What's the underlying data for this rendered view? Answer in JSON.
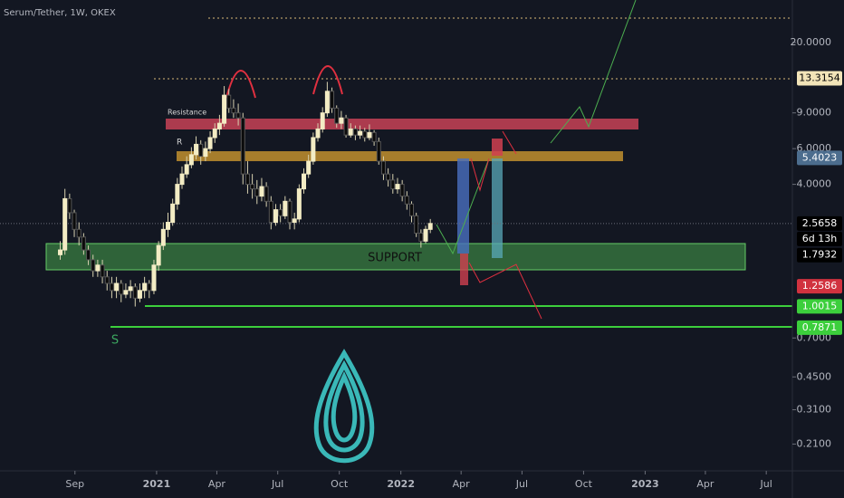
{
  "chart_data": {
    "type": "candlestick",
    "title": "Serum/Tether, 1W, OKEX",
    "x": [
      "2020-08-10",
      "2020-08-17",
      "2020-08-24",
      "2020-08-31",
      "2020-09-07",
      "2020-09-14",
      "2020-09-21",
      "2020-09-28",
      "2020-10-05",
      "2020-10-12",
      "2020-10-19",
      "2020-10-26",
      "2020-11-02",
      "2020-11-09",
      "2020-11-16",
      "2020-11-23",
      "2020-11-30",
      "2020-12-07",
      "2020-12-14",
      "2020-12-21",
      "2020-12-28",
      "2021-01-04",
      "2021-01-11",
      "2021-01-18",
      "2021-01-25",
      "2021-02-01",
      "2021-02-08",
      "2021-02-15",
      "2021-02-22",
      "2021-03-01",
      "2021-03-08",
      "2021-03-15",
      "2021-03-22",
      "2021-03-29",
      "2021-04-05",
      "2021-04-12",
      "2021-04-19",
      "2021-04-26",
      "2021-05-03",
      "2021-05-10",
      "2021-05-17",
      "2021-05-24",
      "2021-05-31",
      "2021-06-07",
      "2021-06-14",
      "2021-06-21",
      "2021-06-28",
      "2021-07-05",
      "2021-07-12",
      "2021-07-19",
      "2021-07-26",
      "2021-08-02",
      "2021-08-09",
      "2021-08-16",
      "2021-08-23",
      "2021-08-30",
      "2021-09-06",
      "2021-09-13",
      "2021-09-20",
      "2021-09-27",
      "2021-10-04",
      "2021-10-11",
      "2021-10-18",
      "2021-10-25",
      "2021-11-01",
      "2021-11-08",
      "2021-11-15",
      "2021-11-22",
      "2021-11-29",
      "2021-12-06",
      "2021-12-13",
      "2021-12-20",
      "2021-12-27",
      "2022-01-03",
      "2022-01-10",
      "2022-01-17",
      "2022-01-24",
      "2022-01-31",
      "2022-02-07",
      "2022-02-14"
    ],
    "open": [
      1.8,
      1.9,
      3.4,
      2.9,
      2.4,
      2.2,
      1.9,
      1.7,
      1.5,
      1.6,
      1.4,
      1.3,
      1.2,
      1.3,
      1.15,
      1.2,
      1.25,
      1.1,
      1.2,
      1.3,
      1.2,
      1.6,
      2.0,
      2.4,
      2.6,
      3.2,
      4.0,
      4.5,
      5.0,
      5.6,
      6.3,
      5.5,
      6.0,
      6.8,
      7.5,
      8.0,
      11.0,
      9.5,
      9.0,
      8.5,
      4.5,
      4.0,
      3.8,
      3.5,
      3.9,
      3.3,
      2.6,
      3.0,
      2.8,
      3.3,
      2.6,
      2.7,
      3.8,
      4.5,
      5.2,
      6.8,
      7.5,
      9.0,
      11.5,
      9.5,
      8.0,
      8.5,
      7.0,
      7.5,
      7.0,
      7.3,
      6.8,
      7.2,
      6.5,
      5.2,
      4.5,
      4.2,
      3.8,
      4.0,
      3.5,
      3.2,
      2.8,
      2.3,
      2.1,
      2.4
    ],
    "high": [
      2.1,
      3.8,
      3.6,
      3.0,
      2.6,
      2.3,
      2.0,
      1.8,
      1.7,
      1.7,
      1.5,
      1.4,
      1.4,
      1.35,
      1.3,
      1.35,
      1.3,
      1.3,
      1.4,
      1.35,
      1.7,
      2.1,
      2.6,
      2.9,
      3.4,
      4.3,
      4.9,
      5.5,
      6.1,
      6.9,
      6.6,
      6.5,
      7.3,
      8.0,
      8.8,
      12.2,
      11.8,
      10.5,
      10.0,
      9.0,
      5.2,
      4.5,
      4.2,
      4.3,
      4.1,
      3.5,
      3.2,
      3.2,
      3.5,
      3.4,
      2.9,
      4.0,
      4.8,
      5.6,
      7.2,
      8.0,
      9.6,
      12.8,
      12.0,
      9.8,
      9.2,
      8.8,
      8.0,
      7.8,
      7.8,
      7.6,
      7.9,
      7.4,
      6.8,
      5.5,
      4.8,
      4.5,
      4.3,
      4.2,
      3.7,
      3.3,
      2.9,
      2.4,
      2.5,
      2.7
    ],
    "low": [
      1.7,
      1.8,
      2.7,
      2.2,
      2.0,
      1.8,
      1.6,
      1.4,
      1.4,
      1.3,
      1.2,
      1.1,
      1.1,
      1.05,
      1.1,
      1.1,
      1.0,
      1.05,
      1.1,
      1.1,
      1.15,
      1.5,
      1.9,
      2.2,
      2.5,
      3.0,
      3.8,
      4.3,
      4.8,
      5.3,
      5.0,
      5.2,
      5.7,
      6.4,
      7.0,
      7.7,
      9.0,
      8.5,
      7.8,
      4.0,
      3.6,
      3.4,
      3.2,
      3.3,
      3.1,
      2.4,
      2.5,
      2.6,
      2.7,
      2.4,
      2.4,
      2.6,
      3.6,
      4.3,
      5.0,
      6.5,
      7.2,
      8.6,
      9.0,
      7.6,
      7.5,
      6.8,
      6.8,
      6.6,
      6.7,
      6.5,
      6.6,
      6.2,
      5.0,
      4.2,
      3.9,
      3.6,
      3.6,
      3.3,
      3.0,
      2.6,
      2.2,
      1.95,
      2.05,
      2.3
    ],
    "close": [
      1.9,
      3.4,
      2.9,
      2.4,
      2.2,
      1.9,
      1.7,
      1.5,
      1.6,
      1.4,
      1.3,
      1.2,
      1.3,
      1.15,
      1.2,
      1.25,
      1.1,
      1.2,
      1.3,
      1.2,
      1.6,
      2.0,
      2.4,
      2.6,
      3.2,
      4.0,
      4.5,
      5.0,
      5.6,
      6.3,
      5.5,
      6.0,
      6.8,
      7.5,
      8.0,
      11.0,
      9.5,
      9.0,
      8.5,
      4.5,
      4.0,
      3.8,
      3.5,
      3.9,
      3.3,
      2.6,
      3.0,
      2.8,
      3.3,
      2.6,
      2.7,
      3.8,
      4.5,
      5.2,
      6.8,
      7.5,
      9.0,
      11.5,
      9.5,
      8.0,
      8.5,
      7.0,
      7.5,
      7.0,
      7.3,
      6.8,
      7.2,
      6.5,
      5.2,
      4.5,
      4.2,
      3.8,
      4.0,
      3.5,
      3.2,
      2.8,
      2.3,
      2.1,
      2.4,
      2.5658
    ],
    "up_color": "#f3ecc4",
    "down_color": "#0b0b0b",
    "wick_color": "#d8d2b0",
    "log_scale": true,
    "ylim": [
      0.155,
      32.4
    ],
    "yticks": [
      {
        "value": 20,
        "label": "20.0000"
      },
      {
        "value": 9,
        "label": "9.0000"
      },
      {
        "value": 6,
        "label": "6.0000"
      },
      {
        "value": 4,
        "label": "4.0000"
      },
      {
        "value": 0.7,
        "label": "0.7000"
      },
      {
        "value": 0.45,
        "label": "0.4500"
      },
      {
        "value": 0.31,
        "label": "0.3100"
      },
      {
        "value": 0.21,
        "label": "0.2100"
      }
    ],
    "xlim": [
      "2020-05-12",
      "2023-08-09"
    ],
    "xticks": [
      {
        "value": "2020-09-01",
        "label": "Sep"
      },
      {
        "value": "2021-01-01",
        "label": "2021"
      },
      {
        "value": "2021-04-01",
        "label": "Apr"
      },
      {
        "value": "2021-07-01",
        "label": "Jul"
      },
      {
        "value": "2021-10-01",
        "label": "Oct"
      },
      {
        "value": "2022-01-01",
        "label": "2022"
      },
      {
        "value": "2022-04-01",
        "label": "Apr"
      },
      {
        "value": "2022-07-01",
        "label": "Jul"
      },
      {
        "value": "2022-10-01",
        "label": "Oct"
      },
      {
        "value": "2023-01-01",
        "label": "2023"
      },
      {
        "value": "2023-04-01",
        "label": "Apr"
      },
      {
        "value": "2023-07-01",
        "label": "Jul"
      }
    ],
    "last_price_color": "#000000",
    "countdown": "6d 13h",
    "price_labels": [
      {
        "value": 13.3154,
        "color": "#f2e4b8",
        "text_color": "#000000"
      },
      {
        "value": 5.4023,
        "color": "#4c6d8e",
        "text_color": "#ffffff"
      },
      {
        "value": 1.7932,
        "color": "#000000",
        "text_color": "#ffffff"
      },
      {
        "value": 1.2586,
        "color": "#d1323f",
        "text_color": "#ffffff"
      },
      {
        "value": 1.0015,
        "color": "#3ccf3c",
        "text_color": "#ffffff"
      },
      {
        "value": 0.7871,
        "color": "#3ccf3c",
        "text_color": "#ffffff"
      }
    ],
    "annotations": [
      "Resistance",
      "R",
      "SUPPORT",
      "S"
    ]
  }
}
